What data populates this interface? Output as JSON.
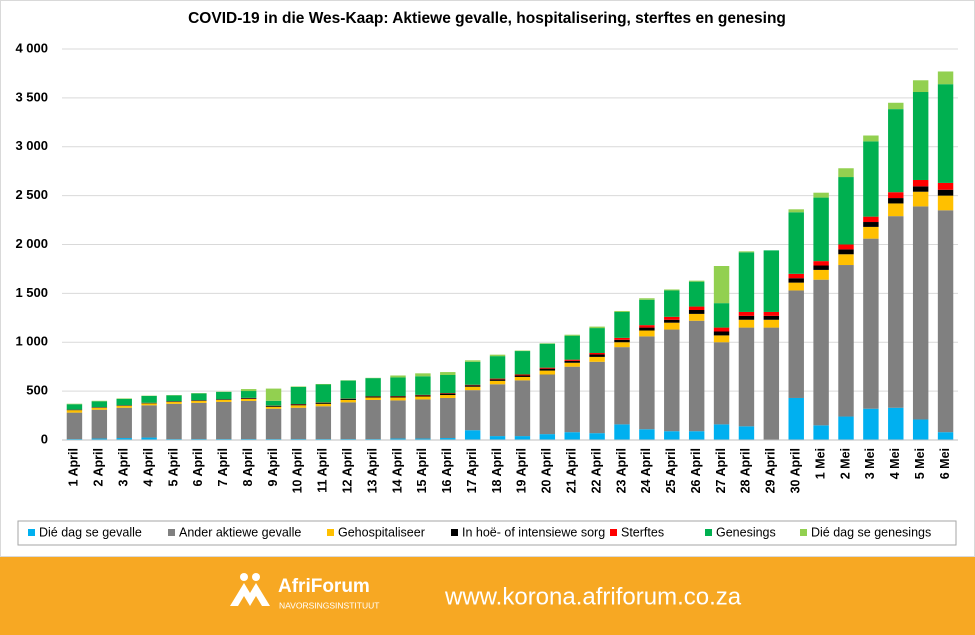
{
  "chart_data": {
    "type": "stacked-bar",
    "title": "COVID-19 in die Wes-Kaap: Aktiewe gevalle, hospitalisering, sterftes en genesing",
    "categories": [
      "1 April",
      "2 April",
      "3 April",
      "4 April",
      "5 April",
      "6 April",
      "7 April",
      "8 April",
      "9 April",
      "10 April",
      "11 April",
      "12 April",
      "13 April",
      "14 April",
      "15 April",
      "16 April",
      "17 April",
      "18 April",
      "19 April",
      "20 April",
      "21 April",
      "22 April",
      "23 April",
      "24 April",
      "25 April",
      "26 April",
      "27 April",
      "28 April",
      "29 April",
      "30 April",
      "1 Mei",
      "2 Mei",
      "3 Mei",
      "4 Mei",
      "5 Mei",
      "6 Mei"
    ],
    "series": [
      {
        "name": "Dié dag se gevalle",
        "color": "#00b0f0",
        "values": [
          10,
          15,
          20,
          25,
          10,
          10,
          10,
          10,
          10,
          10,
          10,
          10,
          10,
          15,
          15,
          20,
          100,
          40,
          40,
          60,
          80,
          70,
          160,
          110,
          90,
          90,
          160,
          140,
          0,
          430,
          150,
          240,
          320,
          330,
          210,
          80
        ]
      },
      {
        "name": "Ander aktiewe gevalle",
        "color": "#808080",
        "values": [
          270,
          295,
          310,
          330,
          360,
          370,
          380,
          390,
          310,
          320,
          335,
          375,
          400,
          390,
          400,
          410,
          410,
          530,
          570,
          610,
          670,
          730,
          790,
          950,
          1040,
          1130,
          840,
          1010,
          1150,
          1100,
          1490,
          1550,
          1740,
          1960,
          2180,
          2270
        ]
      },
      {
        "name": "Gehospitaliseer",
        "color": "#ffc000",
        "values": [
          25,
          20,
          20,
          20,
          20,
          20,
          20,
          20,
          20,
          25,
          25,
          25,
          25,
          30,
          30,
          30,
          35,
          35,
          35,
          40,
          40,
          50,
          50,
          60,
          70,
          70,
          70,
          80,
          80,
          80,
          100,
          110,
          120,
          130,
          150,
          150
        ]
      },
      {
        "name": "In hoë- of intensiewe sorg",
        "color": "#000000",
        "values": [
          5,
          5,
          5,
          5,
          5,
          5,
          5,
          8,
          8,
          10,
          10,
          10,
          10,
          12,
          12,
          15,
          15,
          15,
          15,
          20,
          20,
          25,
          25,
          30,
          30,
          40,
          40,
          40,
          40,
          45,
          45,
          50,
          50,
          55,
          55,
          60
        ]
      },
      {
        "name": "Sterftes",
        "color": "#ff0000",
        "values": [
          1,
          1,
          1,
          1,
          2,
          2,
          2,
          3,
          3,
          3,
          3,
          3,
          3,
          3,
          5,
          5,
          5,
          8,
          10,
          10,
          12,
          15,
          20,
          25,
          30,
          35,
          40,
          40,
          40,
          45,
          45,
          50,
          55,
          60,
          65,
          70
        ]
      },
      {
        "name": "Genesings",
        "color": "#00b050",
        "values": [
          55,
          60,
          65,
          70,
          60,
          70,
          75,
          70,
          50,
          175,
          185,
          185,
          185,
          190,
          190,
          185,
          235,
          230,
          240,
          245,
          245,
          255,
          265,
          260,
          270,
          255,
          250,
          610,
          630,
          630,
          650,
          690,
          770,
          850,
          900,
          1010
        ]
      },
      {
        "name": "Dié dag se genesings",
        "color": "#92d050",
        "values": [
          5,
          5,
          5,
          3,
          3,
          3,
          3,
          20,
          125,
          5,
          5,
          3,
          3,
          20,
          30,
          30,
          15,
          15,
          5,
          5,
          10,
          15,
          10,
          15,
          10,
          10,
          380,
          10,
          0,
          30,
          50,
          90,
          60,
          65,
          120,
          130
        ]
      }
    ],
    "ylim": [
      0,
      4000
    ],
    "yticks": [
      0,
      500,
      {
        "value": 1000,
        "label": "1 000"
      },
      {
        "value": 1500,
        "label": "1 500"
      },
      {
        "value": 2000,
        "label": "2 000"
      },
      {
        "value": 2500,
        "label": "2 500"
      },
      {
        "value": 3000,
        "label": "3 000"
      },
      {
        "value": 3500,
        "label": "3 500"
      },
      {
        "value": 4000,
        "label": "4 000"
      }
    ],
    "grid": true,
    "legend": "bottom"
  },
  "footer": {
    "brand": "AfriForum",
    "subtitle": "NAVORSINGSINSTITUUT",
    "url": "www.korona.afriforum.co.za",
    "color": "#f7a823"
  }
}
